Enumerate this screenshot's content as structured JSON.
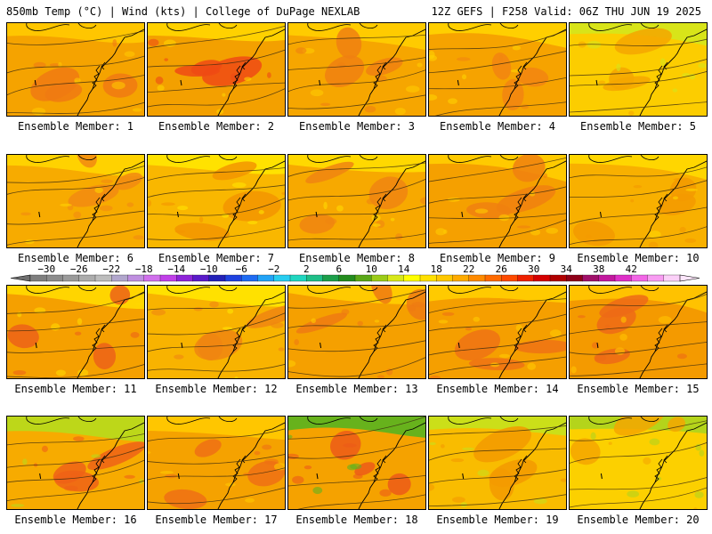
{
  "header": {
    "left": "850mb Temp (°C) | Wind (kts) | College of DuPage NEXLAB",
    "right": "12Z GEFS | F258 Valid: 06Z THU JUN 19 2025"
  },
  "colorbar": {
    "labels": [
      "−30",
      "−26",
      "−22",
      "−18",
      "−14",
      "−10",
      "−6",
      "−2",
      "2",
      "6",
      "10",
      "14",
      "18",
      "22",
      "26",
      "30",
      "34",
      "38",
      "42"
    ],
    "colors": [
      "#7f7f7f",
      "#8c8c8c",
      "#9b9b9b",
      "#acacac",
      "#bdbdbd",
      "#b1a6cc",
      "#bf8fe0",
      "#d070ec",
      "#c040e8",
      "#8e24d8",
      "#5a1bc9",
      "#2321b8",
      "#1f42e0",
      "#1f6bf2",
      "#22a3f6",
      "#27cdf0",
      "#20d6c0",
      "#1fbf88",
      "#1c9f4a",
      "#238c1e",
      "#5aa818",
      "#9ccc18",
      "#d8e81a",
      "#ffff00",
      "#ffe000",
      "#ffc800",
      "#ffab00",
      "#ff8a00",
      "#ff6a00",
      "#ff4a00",
      "#ee2000",
      "#d40000",
      "#b00000",
      "#8e0018",
      "#a0106a",
      "#c2189e",
      "#de30c8",
      "#f266e6",
      "#f89cf2",
      "#fbd0f8"
    ]
  },
  "panels": [
    {
      "label": "Ensemble Member: 1",
      "base": "#f5a300",
      "warm": "#f07a12",
      "cool": "#ffc800"
    },
    {
      "label": "Ensemble Member: 2",
      "base": "#f3a000",
      "warm": "#ee4a14",
      "cool": "#ffd400"
    },
    {
      "label": "Ensemble Member: 3",
      "base": "#f6a600",
      "warm": "#f08010",
      "cool": "#ffcc00"
    },
    {
      "label": "Ensemble Member: 4",
      "base": "#f6a300",
      "warm": "#f28510",
      "cool": "#ffd200"
    },
    {
      "label": "Ensemble Member: 5",
      "base": "#fccd00",
      "warm": "#f5a600",
      "cool": "#d6e51a"
    },
    {
      "label": "Ensemble Member: 6",
      "base": "#f7ab00",
      "warm": "#f28a10",
      "cool": "#ffd400"
    },
    {
      "label": "Ensemble Member: 7",
      "base": "#f9b700",
      "warm": "#f39500",
      "cool": "#ffe400"
    },
    {
      "label": "Ensemble Member: 8",
      "base": "#f7a900",
      "warm": "#f08510",
      "cool": "#ffda00"
    },
    {
      "label": "Ensemble Member: 9",
      "base": "#f5a000",
      "warm": "#f0800f",
      "cool": "#ffcc00"
    },
    {
      "label": "Ensemble Member: 10",
      "base": "#f8b000",
      "warm": "#f39a00",
      "cool": "#ffd800"
    },
    {
      "label": "Ensemble Member: 11",
      "base": "#f5a000",
      "warm": "#ec6218",
      "cool": "#ffd800"
    },
    {
      "label": "Ensemble Member: 12",
      "base": "#f8b300",
      "warm": "#f08510",
      "cool": "#ffe400"
    },
    {
      "label": "Ensemble Member: 13",
      "base": "#f5a000",
      "warm": "#ef7a12",
      "cool": "#ffcc00"
    },
    {
      "label": "Ensemble Member: 14",
      "base": "#f59f00",
      "warm": "#ee7214",
      "cool": "#ffcc00"
    },
    {
      "label": "Ensemble Member: 15",
      "base": "#f49a00",
      "warm": "#ed6a16",
      "cool": "#ffc400"
    },
    {
      "label": "Ensemble Member: 16",
      "base": "#f7ab00",
      "warm": "#ee6216",
      "cool": "#b9d91a"
    },
    {
      "label": "Ensemble Member: 17",
      "base": "#f5a200",
      "warm": "#ee7014",
      "cool": "#ffc800"
    },
    {
      "label": "Ensemble Member: 18",
      "base": "#f5a200",
      "warm": "#ec5a18",
      "cool": "#5fb31e"
    },
    {
      "label": "Ensemble Member: 19",
      "base": "#f9bc00",
      "warm": "#f39a00",
      "cool": "#c8e01a"
    },
    {
      "label": "Ensemble Member: 20",
      "base": "#fcd000",
      "warm": "#f5a600",
      "cool": "#b0d41c"
    }
  ]
}
